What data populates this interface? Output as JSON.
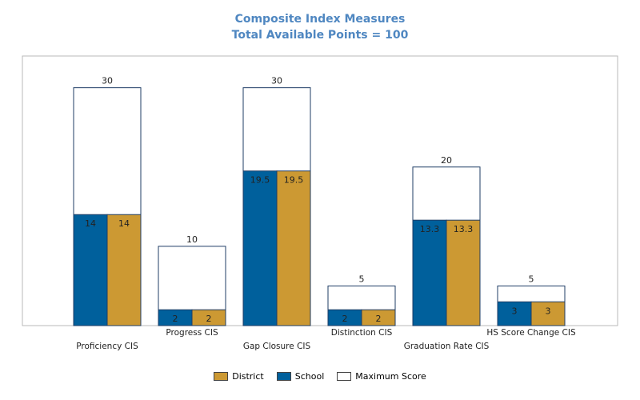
{
  "chart_data": {
    "type": "bar",
    "title": "Composite Index Measures",
    "subtitle": "Total Available Points = 100",
    "xlabel": "",
    "ylabel": "",
    "ylim": [
      0,
      34
    ],
    "grid": false,
    "legend_position": "bottom",
    "categories": [
      "Proficiency CIS",
      "Progress CIS",
      "Gap Closure CIS",
      "Distinction CIS",
      "Graduation Rate CIS",
      "HS Score Change CIS"
    ],
    "series": [
      {
        "name": "District",
        "values": [
          14,
          2,
          19.5,
          2,
          13.3,
          3
        ],
        "color": "#cc9933"
      },
      {
        "name": "School",
        "values": [
          14,
          2,
          19.5,
          2,
          13.3,
          3
        ],
        "color": "#00609c"
      },
      {
        "name": "Maximum Score",
        "values": [
          30,
          10,
          30,
          5,
          20,
          5
        ],
        "color": "#ffffff"
      }
    ]
  }
}
